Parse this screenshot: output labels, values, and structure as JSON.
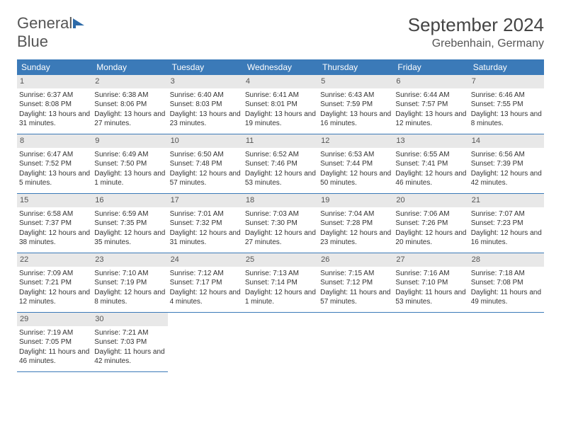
{
  "logo": {
    "text1": "General",
    "text2": "Blue",
    "icon_color": "#2d6aa8"
  },
  "title": "September 2024",
  "location": "Grebenhain, Germany",
  "day_headers": [
    "Sunday",
    "Monday",
    "Tuesday",
    "Wednesday",
    "Thursday",
    "Friday",
    "Saturday"
  ],
  "colors": {
    "header_bg": "#3b7ab8",
    "rule": "#3b7ab8",
    "daynum_bg": "#e8e8e8"
  },
  "days": [
    {
      "n": "1",
      "sunrise": "6:37 AM",
      "sunset": "8:08 PM",
      "daylight": "13 hours and 31 minutes."
    },
    {
      "n": "2",
      "sunrise": "6:38 AM",
      "sunset": "8:06 PM",
      "daylight": "13 hours and 27 minutes."
    },
    {
      "n": "3",
      "sunrise": "6:40 AM",
      "sunset": "8:03 PM",
      "daylight": "13 hours and 23 minutes."
    },
    {
      "n": "4",
      "sunrise": "6:41 AM",
      "sunset": "8:01 PM",
      "daylight": "13 hours and 19 minutes."
    },
    {
      "n": "5",
      "sunrise": "6:43 AM",
      "sunset": "7:59 PM",
      "daylight": "13 hours and 16 minutes."
    },
    {
      "n": "6",
      "sunrise": "6:44 AM",
      "sunset": "7:57 PM",
      "daylight": "13 hours and 12 minutes."
    },
    {
      "n": "7",
      "sunrise": "6:46 AM",
      "sunset": "7:55 PM",
      "daylight": "13 hours and 8 minutes."
    },
    {
      "n": "8",
      "sunrise": "6:47 AM",
      "sunset": "7:52 PM",
      "daylight": "13 hours and 5 minutes."
    },
    {
      "n": "9",
      "sunrise": "6:49 AM",
      "sunset": "7:50 PM",
      "daylight": "13 hours and 1 minute."
    },
    {
      "n": "10",
      "sunrise": "6:50 AM",
      "sunset": "7:48 PM",
      "daylight": "12 hours and 57 minutes."
    },
    {
      "n": "11",
      "sunrise": "6:52 AM",
      "sunset": "7:46 PM",
      "daylight": "12 hours and 53 minutes."
    },
    {
      "n": "12",
      "sunrise": "6:53 AM",
      "sunset": "7:44 PM",
      "daylight": "12 hours and 50 minutes."
    },
    {
      "n": "13",
      "sunrise": "6:55 AM",
      "sunset": "7:41 PM",
      "daylight": "12 hours and 46 minutes."
    },
    {
      "n": "14",
      "sunrise": "6:56 AM",
      "sunset": "7:39 PM",
      "daylight": "12 hours and 42 minutes."
    },
    {
      "n": "15",
      "sunrise": "6:58 AM",
      "sunset": "7:37 PM",
      "daylight": "12 hours and 38 minutes."
    },
    {
      "n": "16",
      "sunrise": "6:59 AM",
      "sunset": "7:35 PM",
      "daylight": "12 hours and 35 minutes."
    },
    {
      "n": "17",
      "sunrise": "7:01 AM",
      "sunset": "7:32 PM",
      "daylight": "12 hours and 31 minutes."
    },
    {
      "n": "18",
      "sunrise": "7:03 AM",
      "sunset": "7:30 PM",
      "daylight": "12 hours and 27 minutes."
    },
    {
      "n": "19",
      "sunrise": "7:04 AM",
      "sunset": "7:28 PM",
      "daylight": "12 hours and 23 minutes."
    },
    {
      "n": "20",
      "sunrise": "7:06 AM",
      "sunset": "7:26 PM",
      "daylight": "12 hours and 20 minutes."
    },
    {
      "n": "21",
      "sunrise": "7:07 AM",
      "sunset": "7:23 PM",
      "daylight": "12 hours and 16 minutes."
    },
    {
      "n": "22",
      "sunrise": "7:09 AM",
      "sunset": "7:21 PM",
      "daylight": "12 hours and 12 minutes."
    },
    {
      "n": "23",
      "sunrise": "7:10 AM",
      "sunset": "7:19 PM",
      "daylight": "12 hours and 8 minutes."
    },
    {
      "n": "24",
      "sunrise": "7:12 AM",
      "sunset": "7:17 PM",
      "daylight": "12 hours and 4 minutes."
    },
    {
      "n": "25",
      "sunrise": "7:13 AM",
      "sunset": "7:14 PM",
      "daylight": "12 hours and 1 minute."
    },
    {
      "n": "26",
      "sunrise": "7:15 AM",
      "sunset": "7:12 PM",
      "daylight": "11 hours and 57 minutes."
    },
    {
      "n": "27",
      "sunrise": "7:16 AM",
      "sunset": "7:10 PM",
      "daylight": "11 hours and 53 minutes."
    },
    {
      "n": "28",
      "sunrise": "7:18 AM",
      "sunset": "7:08 PM",
      "daylight": "11 hours and 49 minutes."
    },
    {
      "n": "29",
      "sunrise": "7:19 AM",
      "sunset": "7:05 PM",
      "daylight": "11 hours and 46 minutes."
    },
    {
      "n": "30",
      "sunrise": "7:21 AM",
      "sunset": "7:03 PM",
      "daylight": "11 hours and 42 minutes."
    }
  ]
}
